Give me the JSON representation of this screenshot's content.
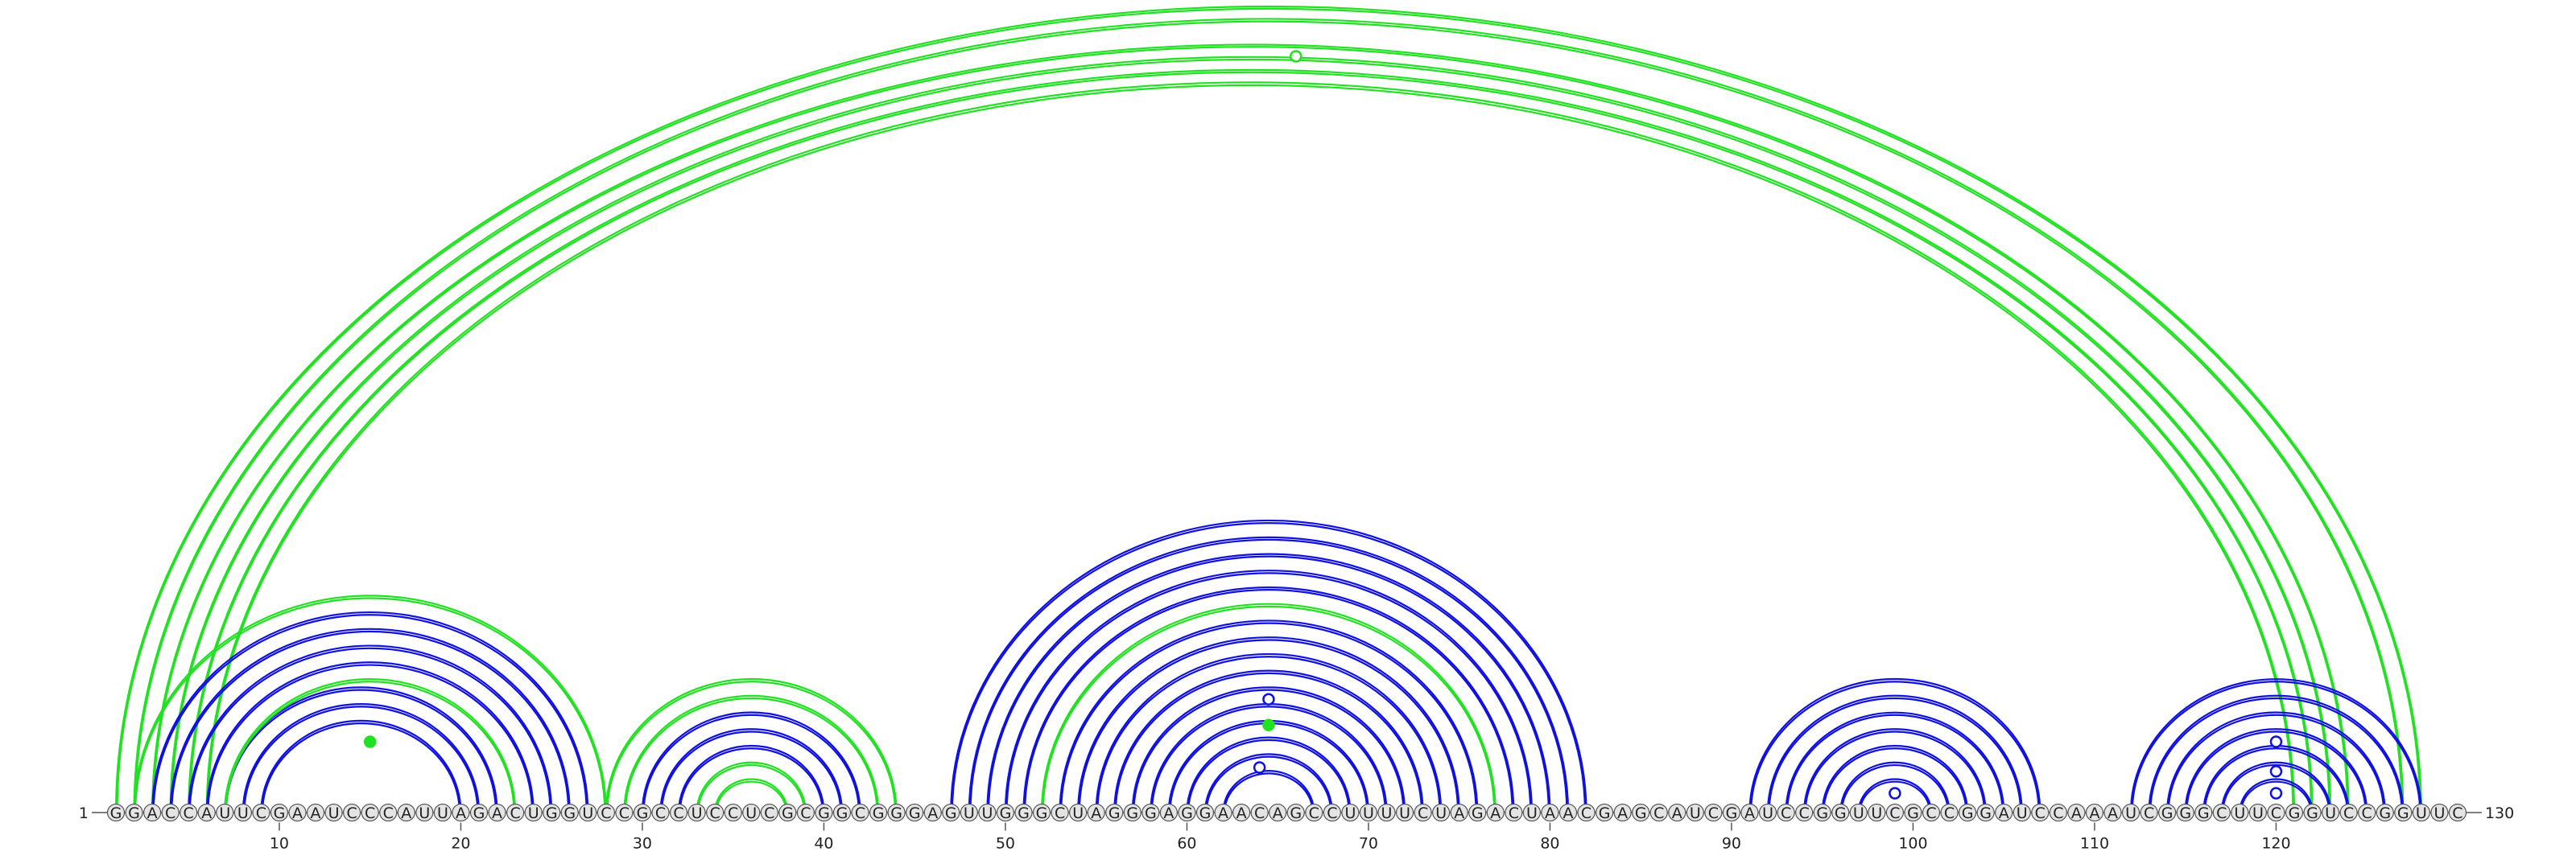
{
  "sequence": "GGACCAUUCGAAUCCCAUUAGACUGGUCCGCCUCCUCGCGGCGGGAGUUGGGCUAGGGAGGAACAGCCUUUUCUAGACUAACGAGCAUCGAUCCGGUUCGCCGGAUCCAAAUCGGGCUUCGGUCCGGUUC",
  "start_label": "1",
  "end_label": "130",
  "tick_labels": [
    "10",
    "20",
    "30",
    "40",
    "50",
    "60",
    "70",
    "80",
    "90",
    "100",
    "110",
    "120"
  ],
  "colors": {
    "blue": "#1010e0",
    "green": "#22e022",
    "base_fill": "#e4e4e4",
    "base_stroke": "#555555"
  },
  "arc_groups": [
    {
      "name": "long-range-pseudoknot",
      "color": "green",
      "pairs": [
        [
          1,
          128
        ],
        [
          2,
          127
        ],
        [
          3,
          124
        ],
        [
          4,
          123
        ],
        [
          5,
          122
        ],
        [
          6,
          121
        ]
      ]
    },
    {
      "name": "helix-5prime-outer",
      "color": "green",
      "pairs": [
        [
          2,
          28
        ]
      ]
    },
    {
      "name": "helix-5prime",
      "color": "blue",
      "pairs": [
        [
          3,
          27
        ],
        [
          4,
          26
        ],
        [
          5,
          25
        ],
        [
          6,
          24
        ],
        [
          7,
          22
        ],
        [
          8,
          21
        ],
        [
          9,
          20
        ]
      ]
    },
    {
      "name": "helix-5prime-inner",
      "color": "green",
      "pairs": [
        [
          7,
          23
        ]
      ]
    },
    {
      "name": "helix-2-outer",
      "color": "green",
      "pairs": [
        [
          28,
          44
        ],
        [
          29,
          43
        ]
      ]
    },
    {
      "name": "helix-2",
      "color": "blue",
      "pairs": [
        [
          30,
          42
        ],
        [
          31,
          41
        ],
        [
          32,
          40
        ]
      ]
    },
    {
      "name": "helix-2-inner",
      "color": "green",
      "pairs": [
        [
          33,
          39
        ],
        [
          34,
          38
        ]
      ]
    },
    {
      "name": "central-domain",
      "color": "blue",
      "pairs": [
        [
          47,
          82
        ],
        [
          48,
          81
        ],
        [
          49,
          80
        ],
        [
          50,
          79
        ],
        [
          51,
          78
        ],
        [
          53,
          76
        ],
        [
          54,
          75
        ],
        [
          55,
          74
        ],
        [
          56,
          73
        ],
        [
          57,
          72
        ],
        [
          58,
          71
        ],
        [
          59,
          70
        ],
        [
          60,
          69
        ],
        [
          61,
          68
        ],
        [
          62,
          67
        ]
      ]
    },
    {
      "name": "central-domain-green",
      "color": "green",
      "pairs": [
        [
          52,
          77
        ]
      ]
    },
    {
      "name": "hairpin-3",
      "color": "blue",
      "pairs": [
        [
          91,
          107
        ],
        [
          92,
          106
        ],
        [
          93,
          105
        ],
        [
          94,
          104
        ],
        [
          95,
          103
        ],
        [
          96,
          102
        ],
        [
          97,
          101
        ]
      ]
    },
    {
      "name": "hairpin-4",
      "color": "blue",
      "pairs": [
        [
          112,
          128
        ],
        [
          113,
          127
        ],
        [
          114,
          126
        ],
        [
          115,
          125
        ],
        [
          116,
          124
        ],
        [
          117,
          123
        ],
        [
          118,
          122
        ]
      ]
    }
  ],
  "markers": [
    {
      "x_pos": 66.0,
      "level": 0.96,
      "filled": false,
      "color": "green"
    },
    {
      "x_pos": 15.0,
      "level": 0.55,
      "filled": true,
      "color": "green"
    },
    {
      "x_pos": 64.5,
      "level": 0.88,
      "filled": false,
      "color": "blue"
    },
    {
      "x_pos": 64.5,
      "level": 0.68,
      "filled": true,
      "color": "green"
    },
    {
      "x_pos": 64.0,
      "level": 0.35,
      "filled": false,
      "color": "blue"
    },
    {
      "x_pos": 99.0,
      "level": 0.15,
      "filled": false,
      "color": "blue"
    },
    {
      "x_pos": 120.0,
      "level": 0.55,
      "filled": false,
      "color": "blue"
    },
    {
      "x_pos": 120.0,
      "level": 0.32,
      "filled": false,
      "color": "blue"
    },
    {
      "x_pos": 120.0,
      "level": 0.15,
      "filled": false,
      "color": "blue"
    }
  ]
}
